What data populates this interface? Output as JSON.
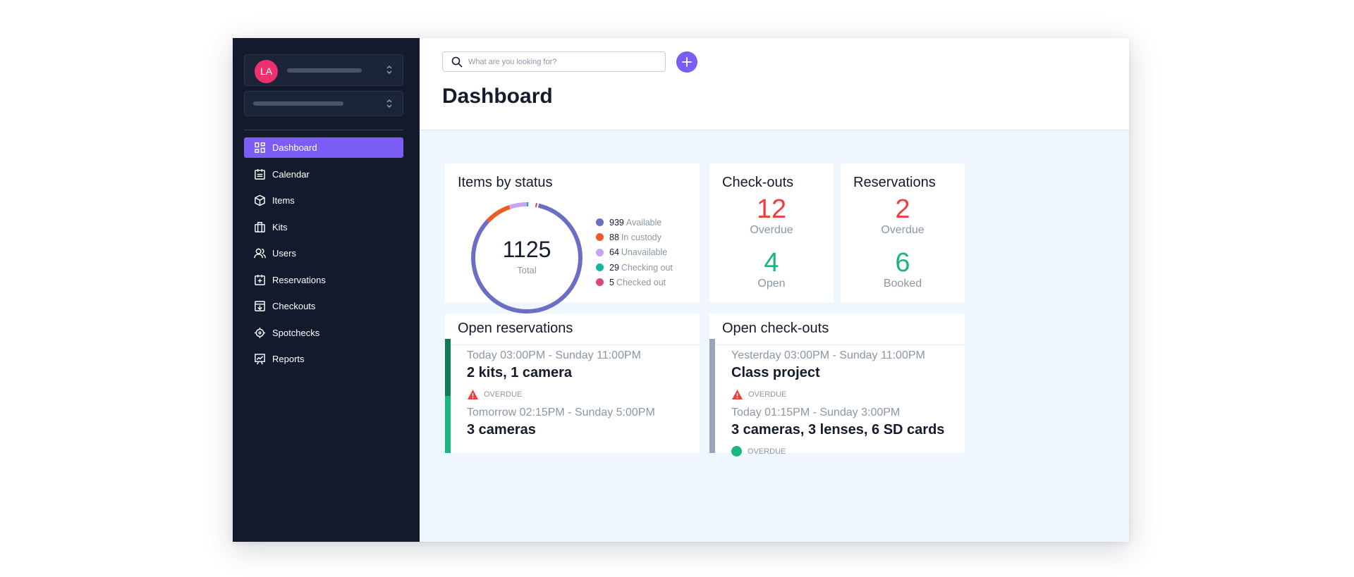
{
  "sidebar": {
    "avatar_initials": "LA",
    "nav": [
      {
        "label": "Dashboard",
        "icon": "dashboard-icon",
        "active": true
      },
      {
        "label": "Calendar",
        "icon": "calendar-icon"
      },
      {
        "label": "Items",
        "icon": "box-icon"
      },
      {
        "label": "Kits",
        "icon": "briefcase-icon"
      },
      {
        "label": "Users",
        "icon": "users-icon"
      },
      {
        "label": "Reservations",
        "icon": "calendar-plus-icon"
      },
      {
        "label": "Checkouts",
        "icon": "checkout-icon"
      },
      {
        "label": "Spotchecks",
        "icon": "crosshair-icon"
      },
      {
        "label": "Reports",
        "icon": "chart-board-icon"
      }
    ]
  },
  "header": {
    "search_placeholder": "What are you looking for?",
    "title": "Dashboard"
  },
  "items_by_status": {
    "title": "Items by status",
    "total": "1125",
    "total_label": "Total",
    "chart_data": {
      "type": "pie",
      "categories": [
        "Available",
        "In custody",
        "Unavailable",
        "Checking out",
        "Checked out"
      ],
      "values": [
        939,
        88,
        64,
        29,
        5
      ],
      "colors": [
        "#6c6dc4",
        "#f05a24",
        "#c7a4f6",
        "#13b6a0",
        "#e1467b"
      ]
    },
    "legend": [
      {
        "value": "939",
        "label": "Available",
        "color": "#6c6dc4"
      },
      {
        "value": "88",
        "label": "In custody",
        "color": "#f05a24"
      },
      {
        "value": "64",
        "label": "Unavailable",
        "color": "#c7a4f6"
      },
      {
        "value": "29",
        "label": "Checking out",
        "color": "#13b6a0"
      },
      {
        "value": "5",
        "label": "Checked out",
        "color": "#e1467b"
      }
    ]
  },
  "checkouts": {
    "title": "Check-outs",
    "overdue_count": "12",
    "overdue_label": "Overdue",
    "open_count": "4",
    "open_label": "Open"
  },
  "reservations": {
    "title": "Reservations",
    "overdue_count": "2",
    "overdue_label": "Overdue",
    "booked_count": "6",
    "booked_label": "Booked"
  },
  "open_reservations": {
    "title": "Open reservations",
    "entries": [
      {
        "time": "Today 03:00PM - Sunday 11:00PM",
        "title": "2 kits, 1 camera",
        "status": "OVERDUE",
        "status_icon": "warning-icon",
        "bar_color": "#0f7b58"
      },
      {
        "time": "Tomorrow 02:15PM - Sunday 5:00PM",
        "title": "3 cameras",
        "status": "",
        "bar_color": "#19b77b"
      }
    ]
  },
  "open_checkouts": {
    "title": "Open check-outs",
    "entries": [
      {
        "time": "Yesterday 03:00PM - Sunday 11:00PM",
        "title": "Class project",
        "status": "OVERDUE",
        "status_icon": "warning-icon",
        "bar_color": "#97a4bb"
      },
      {
        "time": "Today 01:15PM - Sunday 3:00PM",
        "title": "3 cameras, 3 lenses, 6 SD cards",
        "status": "OVERDUE",
        "status_icon": "green-dot-icon",
        "bar_color": "#97a4bb"
      }
    ]
  }
}
